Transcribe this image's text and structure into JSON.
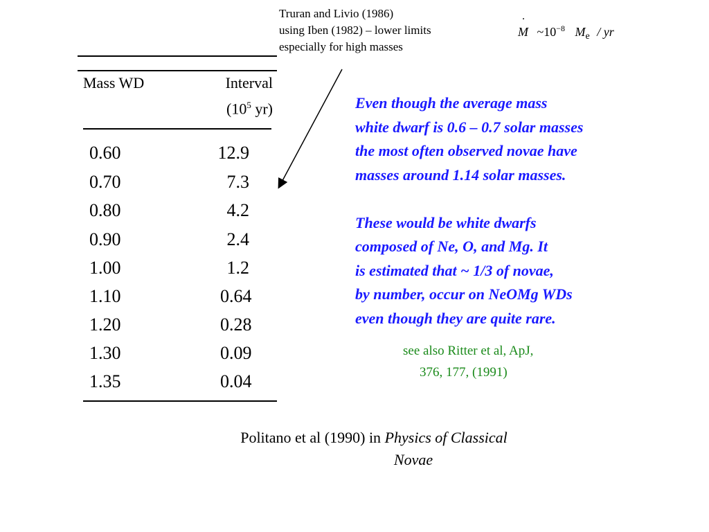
{
  "note_top": {
    "lines": [
      "Truran and Livio (1986)",
      "using Iben (1982) – lower limits",
      "especially for high masses"
    ]
  },
  "formula": {
    "mdot": "M",
    "approx": "~10",
    "exponent": "−8",
    "mass": "M",
    "sun_symbol": "e",
    "per_year": "/ yr"
  },
  "table": {
    "col1_header": "Mass WD",
    "col2_header_line1": "Interval",
    "col2_header_line2_pre": "(10",
    "col2_header_exp": "5",
    "col2_header_line2_post": " yr)",
    "rows": [
      {
        "mass": "0.60",
        "interval": "12.9"
      },
      {
        "mass": "0.70",
        "interval": "7.3"
      },
      {
        "mass": "0.80",
        "interval": "4.2"
      },
      {
        "mass": "0.90",
        "interval": "2.4"
      },
      {
        "mass": "1.00",
        "interval": "1.2"
      },
      {
        "mass": "1.10",
        "interval": "0.64"
      },
      {
        "mass": "1.20",
        "interval": "0.28"
      },
      {
        "mass": "1.30",
        "interval": "0.09"
      },
      {
        "mass": "1.35",
        "interval": "0.04"
      }
    ]
  },
  "blue_text": {
    "lines": [
      "Even though the average mass",
      "white dwarf is 0.6 – 0.7 solar masses",
      "the most often observed novae have",
      "masses around 1.14 solar masses.",
      "",
      "These would be white dwarfs",
      "composed of Ne, O, and Mg. It",
      "is estimated that ~ 1/3 of novae,",
      "by number, occur on NeOMg WDs",
      "even though they are quite rare."
    ]
  },
  "green_note": {
    "line1": "see also Ritter et al, ApJ,",
    "line2": "376, 177, (1991)"
  },
  "citation": {
    "prefix": "Politano et al (1990) in ",
    "title_part1": "Physics of Classical",
    "title_part2": "Novae"
  },
  "colors": {
    "blue_text": "#1a1aff",
    "green_text": "#1a8a1a",
    "black": "#000000"
  }
}
